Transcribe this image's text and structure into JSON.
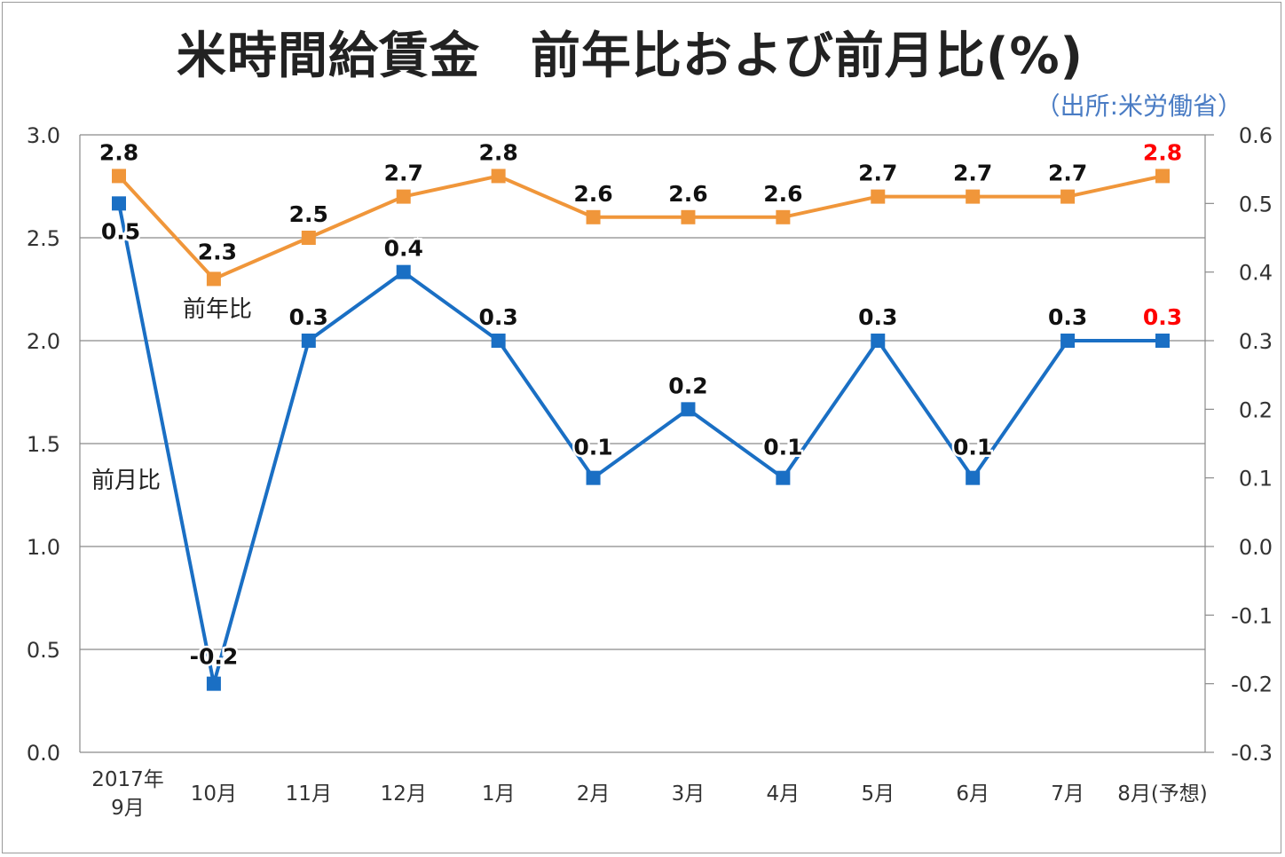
{
  "chart_data": {
    "type": "line",
    "title": "米時間給賃金　前年比および前月比(%)",
    "source": "（出所:米労働省）",
    "categories": [
      [
        "2017年",
        "9月"
      ],
      [
        "10月"
      ],
      [
        "11月"
      ],
      [
        "12月"
      ],
      [
        "1月"
      ],
      [
        "2月"
      ],
      [
        "3月"
      ],
      [
        "4月"
      ],
      [
        "5月"
      ],
      [
        "6月"
      ],
      [
        "7月"
      ],
      [
        "8月(予想)"
      ]
    ],
    "y_left": {
      "lim": [
        0.0,
        3.0
      ],
      "ticks": [
        "0.0",
        "0.5",
        "1.0",
        "1.5",
        "2.0",
        "2.5",
        "3.0"
      ]
    },
    "y_right": {
      "lim": [
        -0.3,
        0.6
      ],
      "ticks": [
        "-0.3",
        "-0.2",
        "-0.1",
        "0.0",
        "0.1",
        "0.2",
        "0.3",
        "0.4",
        "0.5",
        "0.6"
      ]
    },
    "grid": "horizontal",
    "series": [
      {
        "name": "前年比",
        "axis": "left",
        "color": "#f0963a",
        "values": [
          2.8,
          2.3,
          2.5,
          2.7,
          2.8,
          2.6,
          2.6,
          2.6,
          2.7,
          2.7,
          2.7,
          2.8
        ],
        "labels": [
          "2.8",
          "2.3",
          "2.5",
          "2.7",
          "2.8",
          "2.6",
          "2.6",
          "2.6",
          "2.7",
          "2.7",
          "2.7",
          "2.8"
        ]
      },
      {
        "name": "前月比",
        "axis": "right",
        "color": "#1a6fc4",
        "values": [
          0.5,
          -0.2,
          0.3,
          0.4,
          0.3,
          0.1,
          0.2,
          0.1,
          0.3,
          0.1,
          0.3,
          0.3
        ],
        "labels": [
          "0.5",
          "-0.2",
          "0.3",
          "0.4",
          "0.3",
          "0.1",
          "0.2",
          "0.1",
          "0.3",
          "0.1",
          "0.3",
          "0.3"
        ]
      }
    ],
    "highlight_color": "#ff0000",
    "highlight_index": 11
  }
}
